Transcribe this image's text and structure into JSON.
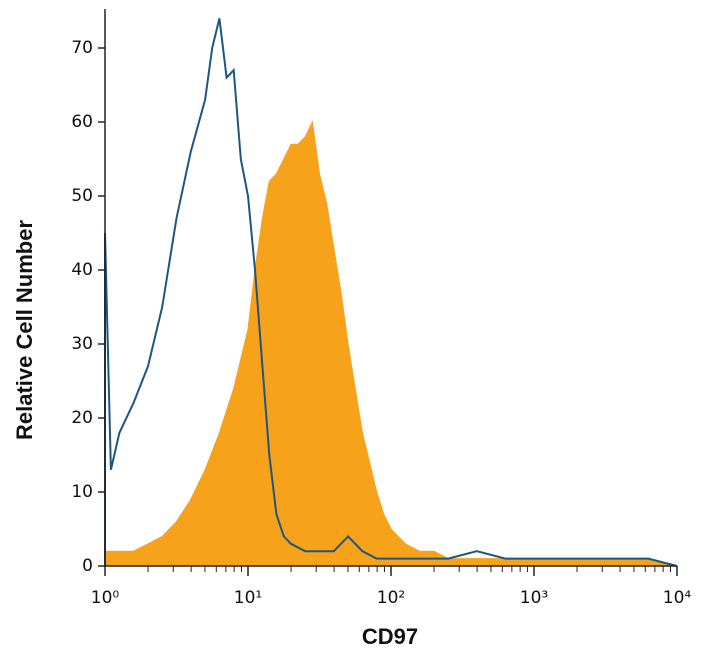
{
  "chart_data": {
    "type": "histogram-overlay",
    "xlabel": "CD97",
    "ylabel": "Relative Cell Number",
    "log_x": true,
    "xlim": [
      1,
      10000
    ],
    "ylim": [
      0,
      75
    ],
    "xticks": [
      {
        "value": 1,
        "label": "10⁰"
      },
      {
        "value": 10,
        "label": "10¹"
      },
      {
        "value": 100,
        "label": "10²"
      },
      {
        "value": 1000,
        "label": "10³"
      },
      {
        "value": 10000,
        "label": "10⁴"
      }
    ],
    "xminorticks": [
      2,
      3,
      4,
      5,
      6,
      7,
      8,
      9,
      20,
      30,
      40,
      50,
      60,
      70,
      80,
      90,
      200,
      300,
      400,
      500,
      600,
      700,
      800,
      900,
      2000,
      3000,
      4000,
      5000,
      6000,
      7000,
      8000,
      9000
    ],
    "yticks": [
      0,
      10,
      20,
      30,
      40,
      50,
      60,
      70
    ],
    "series": [
      {
        "style": "area",
        "color": "#f7a21b",
        "x": [
          1,
          1.26,
          1.58,
          2,
          2.51,
          3.16,
          3.98,
          5.01,
          6.31,
          7.94,
          10,
          11.2,
          12.6,
          14.1,
          15.8,
          17.8,
          20,
          22.4,
          25.1,
          28.2,
          31.6,
          35.5,
          39.8,
          44.7,
          50.1,
          56.2,
          63.1,
          70.8,
          79.4,
          89.1,
          100,
          126,
          158,
          200,
          251,
          316,
          398,
          631,
          1000,
          1580,
          2510,
          3980,
          6310,
          10000
        ],
        "values": [
          2,
          2,
          2,
          3,
          4,
          6,
          9,
          13,
          18,
          24,
          32,
          40,
          47,
          52,
          53,
          55,
          57,
          57,
          58,
          60,
          53,
          49,
          43,
          37,
          30,
          24,
          18,
          14,
          10,
          7,
          5,
          3,
          2,
          2,
          1,
          1,
          1,
          1,
          1,
          1,
          1,
          1,
          1,
          0
        ]
      },
      {
        "style": "line",
        "color": "#1f5580",
        "x": [
          1,
          1.1,
          1.26,
          1.58,
          2,
          2.51,
          3.16,
          3.98,
          5.01,
          5.62,
          6.31,
          7.08,
          7.94,
          8.91,
          10,
          11.2,
          12.6,
          14.1,
          15.8,
          17.8,
          20,
          25.1,
          31.6,
          39.8,
          50.1,
          63.1,
          79.4,
          100,
          158,
          251,
          398,
          631,
          1000,
          1580,
          2510,
          3980,
          6310,
          10000
        ],
        "values": [
          45,
          13,
          18,
          22,
          27,
          35,
          47,
          56,
          63,
          70,
          74,
          66,
          67,
          55,
          50,
          40,
          27,
          15,
          7,
          4,
          3,
          2,
          2,
          2,
          4,
          2,
          1,
          1,
          1,
          1,
          2,
          1,
          1,
          1,
          1,
          1,
          1,
          0
        ]
      }
    ]
  }
}
